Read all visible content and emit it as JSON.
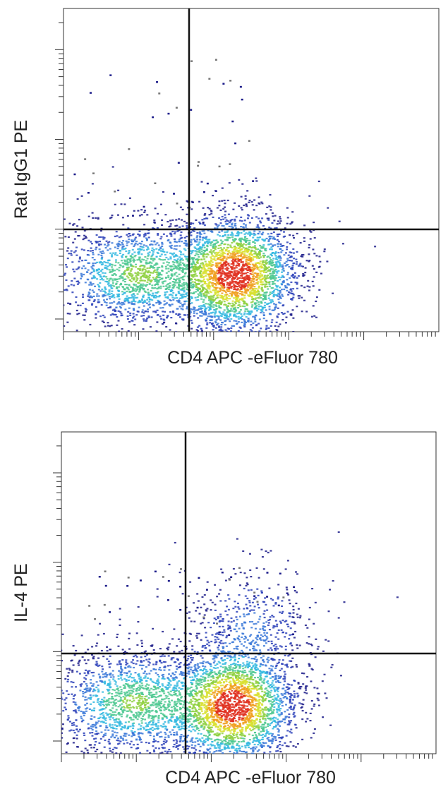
{
  "chart_data": [
    {
      "type": "density",
      "x_label": "CD4 APC -eFluor 780",
      "y_label": "Rat IgG1 PE"
    },
    {
      "type": "density",
      "x_label": "CD4 APC -eFluor 780",
      "y_label": "IL-4 PE"
    }
  ]
}
